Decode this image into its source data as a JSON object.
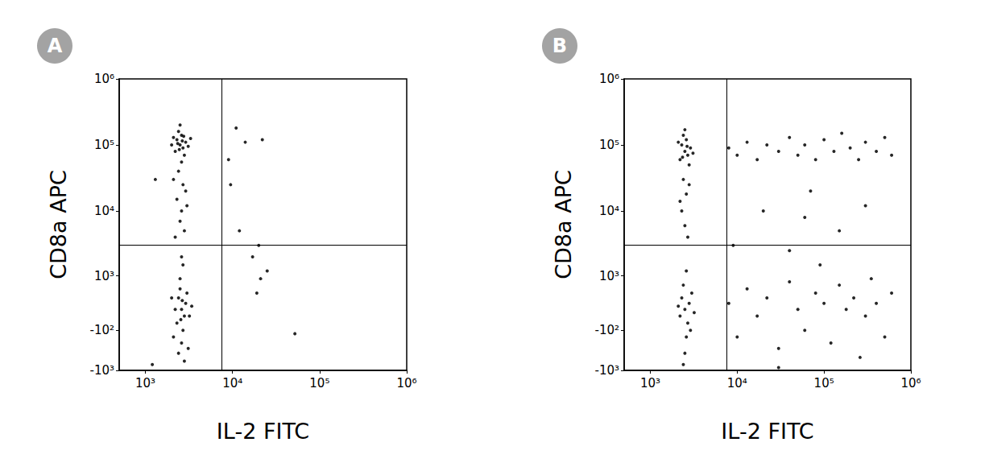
{
  "chart_data": [
    {
      "type": "scatter",
      "panel": "A",
      "x_label": "IL-2 FITC",
      "y_label": "CD8a APC",
      "log": "x",
      "grid": false,
      "color": "#000000",
      "xlim": [
        500,
        1000000
      ],
      "xticks": [
        {
          "value": 1000,
          "label": "10³"
        },
        {
          "value": 10000,
          "label": "10⁴"
        },
        {
          "value": 100000,
          "label": "10⁵"
        },
        {
          "value": 1000000,
          "label": "10⁶"
        }
      ],
      "ylim": [
        -1000,
        1000000
      ],
      "yticks": [
        {
          "value": -1000,
          "label": "-10³"
        },
        {
          "value": -100,
          "label": "-10²"
        },
        {
          "value": 1000,
          "label": "10³"
        },
        {
          "value": 10000,
          "label": "10⁴"
        },
        {
          "value": 100000,
          "label": "10⁵"
        },
        {
          "value": 1000000,
          "label": "10⁶"
        }
      ],
      "quadrant_gate": {
        "x": 7500,
        "y": 3000
      },
      "x": [
        2500,
        2300,
        2700,
        2600,
        2200,
        2900,
        2400,
        2800,
        2100,
        3100,
        2500,
        2600,
        2000,
        3300,
        2350,
        2650,
        2450,
        2750,
        2400,
        2700,
        2300,
        2600,
        2500,
        2800,
        2200,
        2900,
        3000,
        2100,
        2600,
        2400,
        2800,
        2700,
        2500,
        2900,
        2300,
        3000,
        2600,
        2200,
        3200,
        2500,
        2700,
        2400,
        2800,
        2600,
        2100,
        3100,
        2000,
        3400,
        2550,
        2650,
        11000,
        14000,
        9000,
        22000,
        12000,
        20000,
        17000,
        21000,
        19000,
        25000,
        52000,
        9500,
        1300,
        1200
      ],
      "values": [
        100000,
        120000,
        90000,
        140000,
        80000,
        110000,
        160000,
        70000,
        130000,
        95000,
        200000,
        55000,
        100000,
        125000,
        105000,
        115000,
        85000,
        135000,
        40000,
        25000,
        15000,
        10000,
        7000,
        5000,
        4000,
        20000,
        12000,
        30000,
        200,
        400,
        100,
        -100,
        600,
        300,
        0,
        500,
        -300,
        200,
        100,
        900,
        1500,
        -500,
        -700,
        2000,
        -200,
        -400,
        400,
        250,
        50,
        350,
        180000,
        110000,
        60000,
        120000,
        5000,
        3000,
        2000,
        900,
        500,
        1200,
        -150,
        25000,
        30000,
        -800
      ]
    },
    {
      "type": "scatter",
      "panel": "B",
      "x_label": "IL-2 FITC",
      "y_label": "CD8a APC",
      "log": "x",
      "grid": false,
      "color": "#000000",
      "xlim": [
        500,
        1000000
      ],
      "xticks": [
        {
          "value": 1000,
          "label": "10³"
        },
        {
          "value": 10000,
          "label": "10⁴"
        },
        {
          "value": 100000,
          "label": "10⁵"
        },
        {
          "value": 1000000,
          "label": "10⁶"
        }
      ],
      "ylim": [
        -1000,
        1000000
      ],
      "yticks": [
        {
          "value": -1000,
          "label": "-10³"
        },
        {
          "value": -100,
          "label": "-10²"
        },
        {
          "value": 1000,
          "label": "10³"
        },
        {
          "value": 10000,
          "label": "10⁴"
        },
        {
          "value": 100000,
          "label": "10⁵"
        },
        {
          "value": 1000000,
          "label": "10⁶"
        }
      ],
      "quadrant_gate": {
        "x": 7500,
        "y": 3000
      },
      "x": [
        2500,
        2300,
        2700,
        2600,
        2200,
        2900,
        2400,
        2800,
        2100,
        3100,
        2500,
        2650,
        2350,
        2400,
        2600,
        2300,
        2500,
        2700,
        2200,
        2800,
        8000,
        10000,
        13000,
        17000,
        22000,
        30000,
        40000,
        50000,
        60000,
        80000,
        100000,
        130000,
        160000,
        200000,
        250000,
        300000,
        400000,
        500000,
        600000,
        70000,
        2500,
        2300,
        2700,
        2600,
        2400,
        2800,
        2200,
        3000,
        2500,
        2900,
        2600,
        2400,
        2100,
        3200,
        8000,
        10000,
        13000,
        17000,
        22000,
        30000,
        40000,
        50000,
        60000,
        80000,
        100000,
        120000,
        150000,
        180000,
        220000,
        260000,
        300000,
        350000,
        400000,
        500000,
        600000,
        90000,
        20000,
        60000,
        150000,
        300000,
        9000,
        40000,
        30000
      ],
      "values": [
        80000,
        100000,
        70000,
        120000,
        60000,
        90000,
        140000,
        50000,
        110000,
        75000,
        170000,
        95000,
        65000,
        30000,
        18000,
        10000,
        6000,
        4000,
        14000,
        25000,
        90000,
        70000,
        110000,
        60000,
        100000,
        80000,
        130000,
        70000,
        100000,
        60000,
        120000,
        80000,
        150000,
        90000,
        60000,
        110000,
        80000,
        130000,
        70000,
        20000,
        200,
        400,
        0,
        -200,
        700,
        300,
        100,
        500,
        -500,
        -100,
        1200,
        -800,
        250,
        150,
        300,
        -200,
        600,
        100,
        400,
        -400,
        800,
        200,
        -100,
        500,
        300,
        -300,
        700,
        200,
        400,
        -600,
        100,
        900,
        300,
        -200,
        500,
        1500,
        10000,
        8000,
        5000,
        12000,
        3000,
        2500,
        -900
      ]
    }
  ]
}
